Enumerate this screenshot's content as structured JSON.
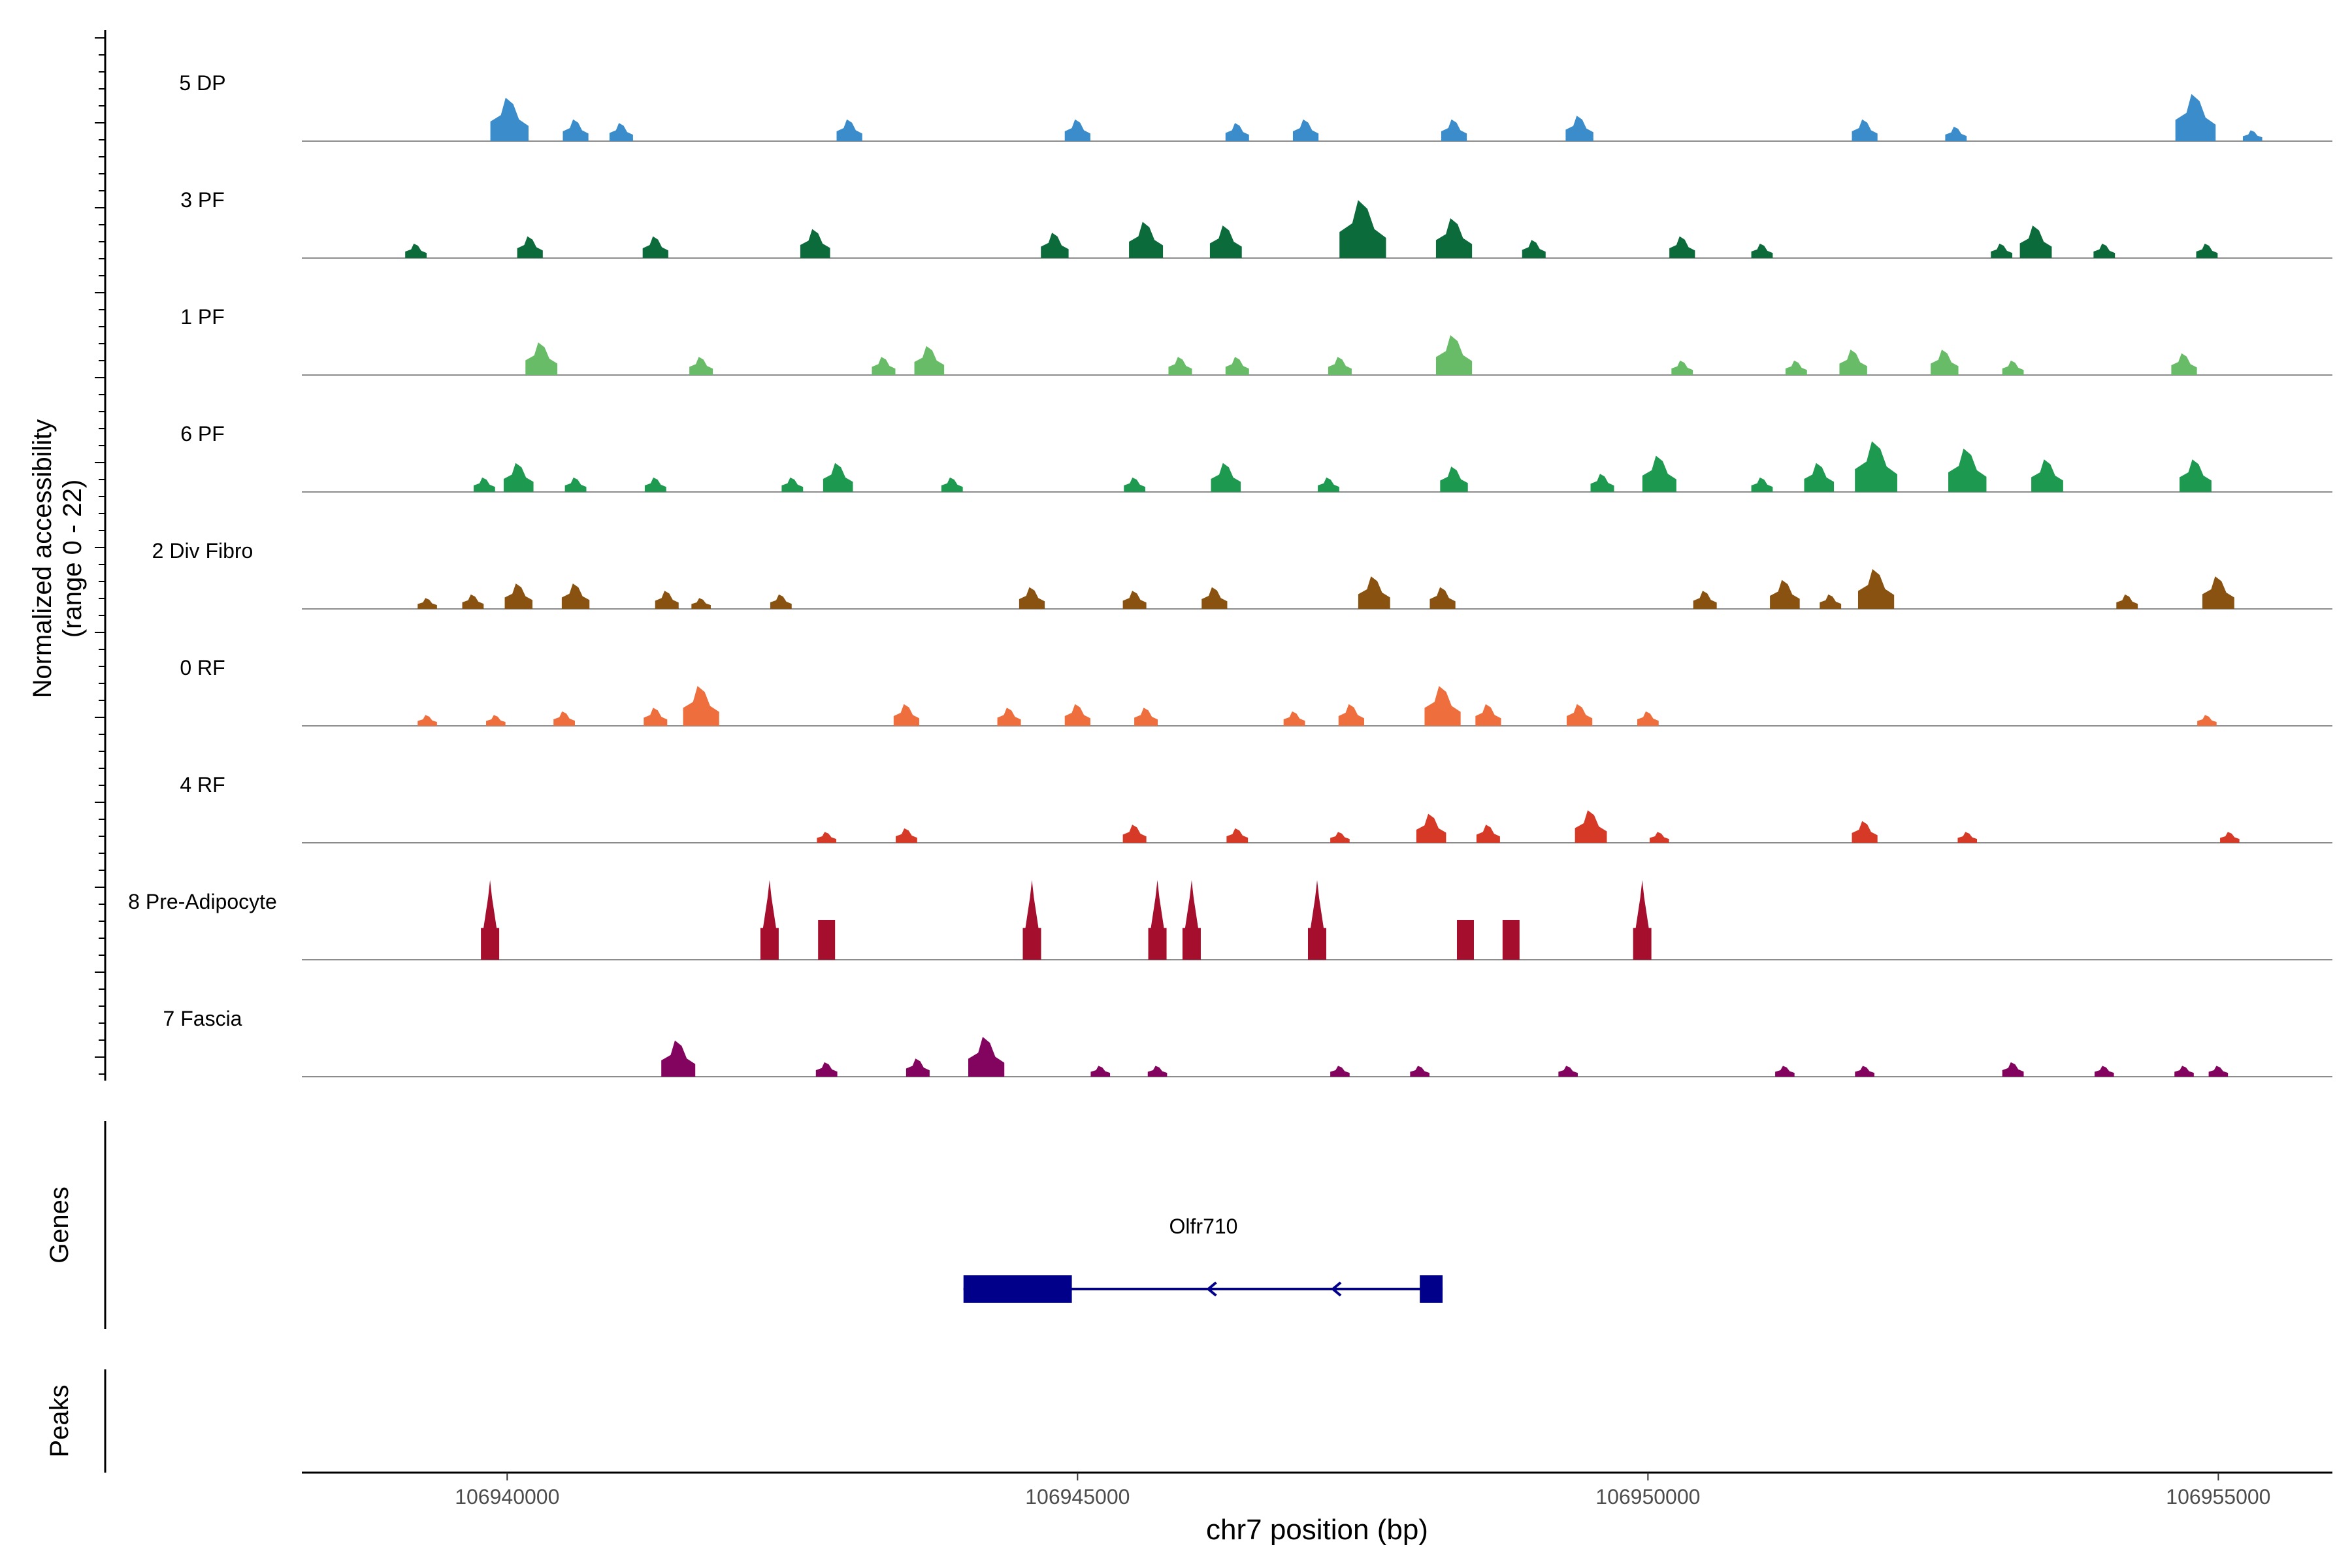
{
  "chart_data": {
    "type": "area",
    "title": "",
    "region": "chr7:106938200-106956000",
    "xlim": [
      106938200,
      106956000
    ],
    "xlabel": "chr7 position (bp)",
    "xticks": [
      106940000,
      106945000,
      106950000,
      106955000
    ],
    "xtick_labels": [
      "106940000",
      "106945000",
      "106950000",
      "106955000"
    ],
    "ylabel_line1": "Normalized accessibility",
    "ylabel_line2": "(range 0 - 22)",
    "ylim": [
      0,
      22
    ],
    "series": [
      {
        "name": "5 DP",
        "color": "#3a8ccb",
        "peaks": [
          [
            106940020,
            12
          ],
          [
            106940600,
            6
          ],
          [
            106941000,
            5
          ],
          [
            106943000,
            6
          ],
          [
            106945000,
            6
          ],
          [
            106946400,
            5
          ],
          [
            106947000,
            6
          ],
          [
            106948300,
            6
          ],
          [
            106949400,
            7
          ],
          [
            106951900,
            6
          ],
          [
            106952700,
            4
          ],
          [
            106954800,
            13
          ],
          [
            106955300,
            3
          ]
        ]
      },
      {
        "name": "3 PF",
        "color": "#0c6b3a",
        "peaks": [
          [
            106939200,
            4
          ],
          [
            106940200,
            6
          ],
          [
            106941300,
            6
          ],
          [
            106942700,
            8
          ],
          [
            106944800,
            7
          ],
          [
            106945600,
            10
          ],
          [
            106946300,
            9
          ],
          [
            106947500,
            16
          ],
          [
            106948300,
            11
          ],
          [
            106949000,
            5
          ],
          [
            106950300,
            6
          ],
          [
            106951000,
            4
          ],
          [
            106953100,
            4
          ],
          [
            106953400,
            9
          ],
          [
            106954000,
            4
          ],
          [
            106954900,
            4
          ]
        ]
      },
      {
        "name": "1 PF",
        "color": "#68bc67",
        "peaks": [
          [
            106940300,
            9
          ],
          [
            106941700,
            5
          ],
          [
            106943300,
            5
          ],
          [
            106943700,
            8
          ],
          [
            106945900,
            5
          ],
          [
            106946400,
            5
          ],
          [
            106947300,
            5
          ],
          [
            106948300,
            11
          ],
          [
            106950300,
            4
          ],
          [
            106951300,
            4
          ],
          [
            106951800,
            7
          ],
          [
            106952600,
            7
          ],
          [
            106953200,
            4
          ],
          [
            106954700,
            6
          ]
        ]
      },
      {
        "name": "6 PF",
        "color": "#1e9a50",
        "peaks": [
          [
            106939800,
            4
          ],
          [
            106940100,
            8
          ],
          [
            106940600,
            4
          ],
          [
            106941300,
            4
          ],
          [
            106942500,
            4
          ],
          [
            106942900,
            8
          ],
          [
            106943900,
            4
          ],
          [
            106945500,
            4
          ],
          [
            106946300,
            8
          ],
          [
            106947200,
            4
          ],
          [
            106948300,
            7
          ],
          [
            106949600,
            5
          ],
          [
            106950100,
            10
          ],
          [
            106951000,
            4
          ],
          [
            106951500,
            8
          ],
          [
            106952000,
            14
          ],
          [
            106952800,
            12
          ],
          [
            106953500,
            9
          ],
          [
            106954800,
            9
          ]
        ]
      },
      {
        "name": "2 Div Fibro",
        "color": "#8a5210",
        "peaks": [
          [
            106939300,
            3
          ],
          [
            106939700,
            4
          ],
          [
            106940100,
            7
          ],
          [
            106940600,
            7
          ],
          [
            106941400,
            5
          ],
          [
            106941700,
            3
          ],
          [
            106942400,
            4
          ],
          [
            106944600,
            6
          ],
          [
            106945500,
            5
          ],
          [
            106946200,
            6
          ],
          [
            106947600,
            9
          ],
          [
            106948200,
            6
          ],
          [
            106950500,
            5
          ],
          [
            106951200,
            8
          ],
          [
            106951600,
            4
          ],
          [
            106952000,
            11
          ],
          [
            106954200,
            4
          ],
          [
            106955000,
            9
          ]
        ]
      },
      {
        "name": "0 RF",
        "color": "#ee6f3d",
        "peaks": [
          [
            106939300,
            3
          ],
          [
            106939900,
            3
          ],
          [
            106940500,
            4
          ],
          [
            106941300,
            5
          ],
          [
            106941700,
            11
          ],
          [
            106943500,
            6
          ],
          [
            106944400,
            5
          ],
          [
            106945000,
            6
          ],
          [
            106945600,
            5
          ],
          [
            106946900,
            4
          ],
          [
            106947400,
            6
          ],
          [
            106948200,
            11
          ],
          [
            106948600,
            6
          ],
          [
            106949400,
            6
          ],
          [
            106950000,
            4
          ],
          [
            106954900,
            3
          ]
        ]
      },
      {
        "name": "4 RF",
        "color": "#d63a26",
        "peaks": [
          [
            106942800,
            3
          ],
          [
            106943500,
            4
          ],
          [
            106945500,
            5
          ],
          [
            106946400,
            4
          ],
          [
            106947300,
            3
          ],
          [
            106948100,
            8
          ],
          [
            106948600,
            5
          ],
          [
            106949500,
            9
          ],
          [
            106950100,
            3
          ],
          [
            106951900,
            6
          ],
          [
            106952800,
            3
          ],
          [
            106955100,
            3
          ]
        ]
      },
      {
        "name": "8 Pre-Adipocyte",
        "color": "#a50e2c",
        "peaks": [
          [
            106939850,
            22
          ],
          [
            106942300,
            22
          ],
          [
            106942800,
            11
          ],
          [
            106944600,
            22
          ],
          [
            106945700,
            22
          ],
          [
            106946000,
            22
          ],
          [
            106947100,
            22
          ],
          [
            106948400,
            11
          ],
          [
            106948800,
            11
          ],
          [
            106949950,
            22
          ]
        ]
      },
      {
        "name": "7 Fascia",
        "color": "#82045e",
        "peaks": [
          [
            106941500,
            10
          ],
          [
            106942800,
            4
          ],
          [
            106943600,
            5
          ],
          [
            106944200,
            11
          ],
          [
            106945200,
            3
          ],
          [
            106945700,
            3
          ],
          [
            106947300,
            3
          ],
          [
            106948000,
            3
          ],
          [
            106949300,
            3
          ],
          [
            106951200,
            3
          ],
          [
            106951900,
            3
          ],
          [
            106953200,
            4
          ],
          [
            106954000,
            3
          ],
          [
            106954700,
            3
          ],
          [
            106955000,
            3
          ]
        ]
      }
    ],
    "genes_label": "Genes",
    "peaks_label": "Peaks",
    "gene": {
      "name": "Olfr710",
      "start": 106944000,
      "end": 106948200,
      "strand": "-",
      "exon_blocks": [
        [
          106944000,
          106944950
        ],
        [
          106948000,
          106948200
        ]
      ],
      "color": "#00008b"
    }
  }
}
